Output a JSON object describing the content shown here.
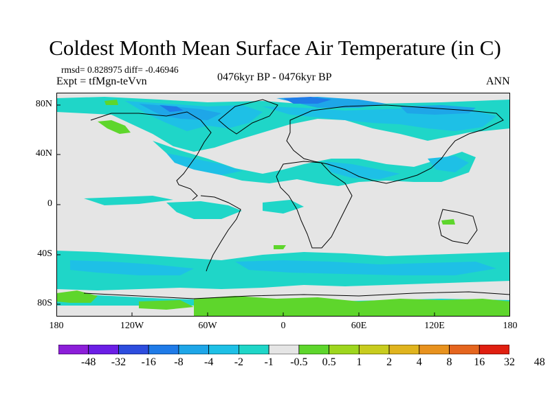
{
  "title": "Coldest Month Mean Surface Air Temperature (in C)",
  "stats_line": "rmsd= 0.828975 diff= -0.46946",
  "expt_line": "Expt = tfMgn-teVvn",
  "period": "0476kyr BP - 0476kyr BP",
  "season": "ANN",
  "map": {
    "projection": "cylindrical-equidistant",
    "lon_range": [
      -180,
      180
    ],
    "lat_range": [
      -90,
      90
    ],
    "lat_ticks": [
      "80N",
      "40N",
      "0",
      "40S",
      "80S"
    ],
    "lon_ticks": [
      "180",
      "120W",
      "60W",
      "0",
      "60E",
      "120E",
      "180"
    ],
    "background_class_color": "#e5e5e5"
  },
  "colorbar": {
    "colors": [
      "#8c1ed9",
      "#6b1ee6",
      "#2d4dde",
      "#1f7be8",
      "#1ea6e8",
      "#1ec0e6",
      "#1fd6c8",
      "#e5e5e5",
      "#5ed62c",
      "#9ed61e",
      "#c8cc1e",
      "#e0b41e",
      "#e8921e",
      "#e5651e",
      "#e01f10"
    ],
    "labels": [
      "-48",
      "-32",
      "-16",
      "-8",
      "-4",
      "-2",
      "-1",
      "-0.5",
      "0.5",
      "1",
      "2",
      "4",
      "8",
      "16",
      "32",
      "48"
    ]
  }
}
